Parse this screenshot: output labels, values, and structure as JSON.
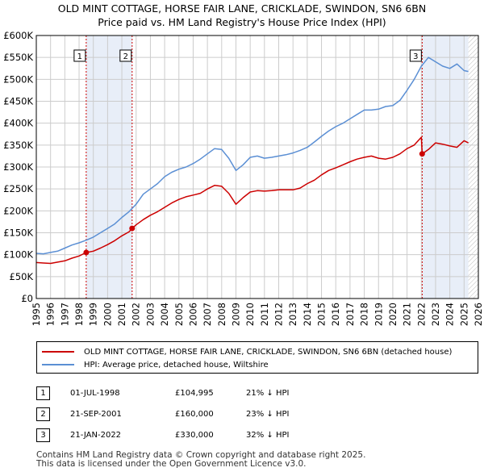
{
  "title_line1": "OLD MINT COTTAGE, HORSE FAIR LANE, CRICKLADE, SWINDON, SN6 6BN",
  "title_line2": "Price paid vs. HM Land Registry's House Price Index (HPI)",
  "legend": {
    "property": "OLD MINT COTTAGE, HORSE FAIR LANE, CRICKLADE, SWINDON, SN6 6BN (detached house)",
    "hpi": "HPI: Average price, detached house, Wiltshire"
  },
  "transactions": [
    {
      "num": "1",
      "date": "01-JUL-1998",
      "price": "£104,995",
      "hpi": "21% ↓ HPI"
    },
    {
      "num": "2",
      "date": "21-SEP-2001",
      "price": "£160,000",
      "hpi": "23% ↓ HPI"
    },
    {
      "num": "3",
      "date": "21-JAN-2022",
      "price": "£330,000",
      "hpi": "32% ↓ HPI"
    }
  ],
  "footer_line1": "Contains HM Land Registry data © Crown copyright and database right 2025.",
  "footer_line2": "This data is licensed under the Open Government Licence v3.0.",
  "colors": {
    "property": "#cc0000",
    "hpi": "#5b8fd4",
    "shade": "#e8eef8",
    "grid": "#cccccc"
  },
  "chart_data": {
    "type": "line",
    "xlim": [
      1995,
      2026
    ],
    "ylim": [
      0,
      600000
    ],
    "x_ticks": [
      1995,
      1996,
      1997,
      1998,
      1999,
      2000,
      2001,
      2002,
      2003,
      2004,
      2005,
      2006,
      2007,
      2008,
      2009,
      2010,
      2011,
      2012,
      2013,
      2014,
      2015,
      2016,
      2017,
      2018,
      2019,
      2020,
      2021,
      2022,
      2023,
      2024,
      2025,
      2026
    ],
    "y_ticks": [
      {
        "value": 0,
        "label": "£0"
      },
      {
        "value": 50000,
        "label": "£50K"
      },
      {
        "value": 100000,
        "label": "£100K"
      },
      {
        "value": 150000,
        "label": "£150K"
      },
      {
        "value": 200000,
        "label": "£200K"
      },
      {
        "value": 250000,
        "label": "£250K"
      },
      {
        "value": 300000,
        "label": "£300K"
      },
      {
        "value": 350000,
        "label": "£350K"
      },
      {
        "value": 400000,
        "label": "£400K"
      },
      {
        "value": 450000,
        "label": "£450K"
      },
      {
        "value": 500000,
        "label": "£500K"
      },
      {
        "value": 550000,
        "label": "£550K"
      },
      {
        "value": 600000,
        "label": "£600K"
      }
    ],
    "shaded_ranges": [
      [
        1998.5,
        2001.72
      ],
      [
        2022.06,
        2025.3
      ]
    ],
    "sale_points": [
      {
        "label": "1",
        "x": 1998.5,
        "y": 104995
      },
      {
        "label": "2",
        "x": 2001.72,
        "y": 160000
      },
      {
        "label": "3",
        "x": 2022.06,
        "y": 330000
      }
    ],
    "series": [
      {
        "name": "HPI: Average price, detached house, Wiltshire",
        "x": [
          1995,
          1995.5,
          1996,
          1996.5,
          1997,
          1997.5,
          1998,
          1998.5,
          1999,
          1999.5,
          2000,
          2000.5,
          2001,
          2001.5,
          2002,
          2002.5,
          2003,
          2003.5,
          2004,
          2004.5,
          2005,
          2005.5,
          2006,
          2006.5,
          2007,
          2007.5,
          2008,
          2008.5,
          2009,
          2009.5,
          2010,
          2010.5,
          2011,
          2011.5,
          2012,
          2012.5,
          2013,
          2013.5,
          2014,
          2014.5,
          2015,
          2015.5,
          2016,
          2016.5,
          2017,
          2017.5,
          2018,
          2018.5,
          2019,
          2019.5,
          2020,
          2020.5,
          2021,
          2021.5,
          2022,
          2022.5,
          2023,
          2023.5,
          2024,
          2024.5,
          2025,
          2025.3
        ],
        "values": [
          103000,
          102000,
          105000,
          108000,
          115000,
          122000,
          127000,
          133000,
          140000,
          150000,
          160000,
          170000,
          185000,
          198000,
          215000,
          238000,
          250000,
          262000,
          278000,
          288000,
          295000,
          300000,
          308000,
          318000,
          330000,
          342000,
          340000,
          320000,
          292000,
          305000,
          322000,
          325000,
          320000,
          322000,
          325000,
          328000,
          332000,
          338000,
          345000,
          357000,
          370000,
          382000,
          392000,
          400000,
          410000,
          420000,
          430000,
          430000,
          432000,
          438000,
          440000,
          452000,
          475000,
          500000,
          530000,
          550000,
          540000,
          530000,
          525000,
          535000,
          520000,
          518000
        ]
      },
      {
        "name": "OLD MINT COTTAGE, HORSE FAIR LANE, CRICKLADE, SWINDON, SN6 6BN (detached house)",
        "x": [
          1995,
          1995.5,
          1996,
          1996.5,
          1997,
          1997.5,
          1998,
          1998.5,
          1999,
          1999.5,
          2000,
          2000.5,
          2001,
          2001.5,
          2001.72,
          2002,
          2002.5,
          2003,
          2003.5,
          2004,
          2004.5,
          2005,
          2005.5,
          2006,
          2006.5,
          2007,
          2007.5,
          2008,
          2008.5,
          2009,
          2009.5,
          2010,
          2010.5,
          2011,
          2011.5,
          2012,
          2012.5,
          2013,
          2013.5,
          2014,
          2014.5,
          2015,
          2015.5,
          2016,
          2016.5,
          2017,
          2017.5,
          2018,
          2018.5,
          2019,
          2019.5,
          2020,
          2020.5,
          2021,
          2021.5,
          2022,
          2022.06,
          2022.5,
          2023,
          2023.5,
          2024,
          2024.5,
          2025,
          2025.3
        ],
        "values": [
          82000,
          81000,
          80000,
          83000,
          86000,
          92000,
          97000,
          104995,
          108000,
          115000,
          123000,
          132000,
          143000,
          152000,
          160000,
          168000,
          180000,
          190000,
          198000,
          208000,
          218000,
          226000,
          232000,
          236000,
          240000,
          250000,
          258000,
          256000,
          240000,
          215000,
          230000,
          243000,
          246000,
          245000,
          246000,
          248000,
          248000,
          248000,
          252000,
          262000,
          270000,
          282000,
          292000,
          298000,
          305000,
          312000,
          318000,
          322000,
          325000,
          320000,
          318000,
          322000,
          330000,
          342000,
          350000,
          368000,
          330000,
          340000,
          355000,
          352000,
          348000,
          345000,
          360000,
          355000
        ]
      }
    ]
  }
}
